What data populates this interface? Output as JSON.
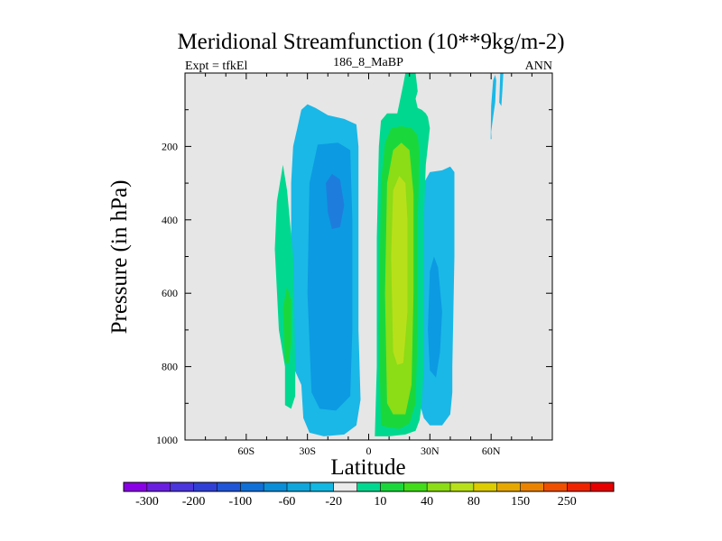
{
  "chart_data": {
    "type": "contour",
    "title": "Meridional Streamfunction (10**9kg/m-2)",
    "left_label": "Expt = tfkEl",
    "center_label": "186_8_MaBP",
    "right_label": "ANN",
    "xlabel": "Latitude",
    "ylabel": "Pressure (in hPa)",
    "xlim": [
      -90,
      90
    ],
    "ylim": [
      1000,
      0
    ],
    "x_ticks": [
      {
        "value": -60,
        "label": "60S"
      },
      {
        "value": -30,
        "label": "30S"
      },
      {
        "value": 0,
        "label": "0"
      },
      {
        "value": 30,
        "label": "30N"
      },
      {
        "value": 60,
        "label": "60N"
      }
    ],
    "y_ticks": [
      {
        "value": 200,
        "label": "200"
      },
      {
        "value": 400,
        "label": "400"
      },
      {
        "value": 600,
        "label": "600"
      },
      {
        "value": 800,
        "label": "800"
      },
      {
        "value": 1000,
        "label": "1000"
      }
    ],
    "background_color": "#e6e6e6",
    "colorbar": {
      "labels": [
        "-300",
        "-200",
        "-100",
        "-60",
        "-20",
        "10",
        "40",
        "80",
        "150",
        "250"
      ],
      "colors": [
        "#8a00e6",
        "#6a1fe0",
        "#4b35dc",
        "#3040d6",
        "#1f55d6",
        "#1170d8",
        "#0b8ed8",
        "#10a6dc",
        "#12b8e2",
        "#ebebeb",
        "#00d890",
        "#1ad83c",
        "#42dc1a",
        "#8cdc16",
        "#b8e01a",
        "#dccc00",
        "#e6a800",
        "#ea8400",
        "#ee5000",
        "#ee2400",
        "#e60000"
      ]
    },
    "regions": [
      {
        "level": "-20",
        "color": "#1ab8e6",
        "points": [
          [
            -33,
            850
          ],
          [
            -37,
            800
          ],
          [
            -38,
            600
          ],
          [
            -38,
            300
          ],
          [
            -37,
            200
          ],
          [
            -35,
            150
          ],
          [
            -33,
            100
          ],
          [
            -30,
            85
          ],
          [
            -26,
            95
          ],
          [
            -20,
            115
          ],
          [
            -12,
            125
          ],
          [
            -6,
            140
          ],
          [
            -5,
            200
          ],
          [
            -5,
            400
          ],
          [
            -5,
            700
          ],
          [
            -4,
            890
          ],
          [
            -6,
            960
          ],
          [
            -12,
            985
          ],
          [
            -22,
            990
          ],
          [
            -29,
            980
          ],
          [
            -32,
            940
          ]
        ]
      },
      {
        "level": "-60",
        "color": "#0c9ae3",
        "points": [
          [
            -28,
            870
          ],
          [
            -30,
            600
          ],
          [
            -29,
            300
          ],
          [
            -25,
            195
          ],
          [
            -15,
            190
          ],
          [
            -9,
            210
          ],
          [
            -8,
            400
          ],
          [
            -8,
            700
          ],
          [
            -9,
            880
          ],
          [
            -16,
            920
          ],
          [
            -24,
            915
          ]
        ]
      },
      {
        "level": "-100",
        "color": "#1e7ddc",
        "points": [
          [
            -20,
            380
          ],
          [
            -21,
            300
          ],
          [
            -18,
            275
          ],
          [
            -14,
            290
          ],
          [
            -12,
            360
          ],
          [
            -14,
            420
          ],
          [
            -18,
            425
          ]
        ]
      },
      {
        "level": "-20",
        "color": "#1ab8e6",
        "points": [
          [
            25,
            900
          ],
          [
            24,
            600
          ],
          [
            25,
            400
          ],
          [
            27,
            300
          ],
          [
            30,
            270
          ],
          [
            36,
            265
          ],
          [
            40,
            255
          ],
          [
            42,
            270
          ],
          [
            42,
            500
          ],
          [
            41,
            800
          ],
          [
            41,
            870
          ],
          [
            40,
            930
          ],
          [
            36,
            960
          ],
          [
            30,
            960
          ],
          [
            27,
            940
          ]
        ]
      },
      {
        "level": "-60",
        "color": "#0c9ae3",
        "points": [
          [
            29,
            700
          ],
          [
            30,
            540
          ],
          [
            32,
            500
          ],
          [
            34,
            530
          ],
          [
            36,
            650
          ],
          [
            35,
            760
          ],
          [
            33,
            830
          ],
          [
            30,
            810
          ]
        ]
      },
      {
        "level": "10",
        "color": "#00d890",
        "points": [
          [
            -41,
            800
          ],
          [
            -44,
            700
          ],
          [
            -46,
            480
          ],
          [
            -45,
            350
          ],
          [
            -42,
            250
          ],
          [
            -40,
            320
          ],
          [
            -37,
            500
          ],
          [
            -36,
            800
          ],
          [
            -36,
            880
          ],
          [
            -38,
            915
          ],
          [
            -41,
            905
          ]
        ]
      },
      {
        "level": "40",
        "color": "#1ad83c",
        "points": [
          [
            -41,
            790
          ],
          [
            -42,
            640
          ],
          [
            -40,
            580
          ],
          [
            -38,
            620
          ],
          [
            -38,
            730
          ],
          [
            -39,
            790
          ]
        ]
      },
      {
        "level": "10",
        "color": "#00d890",
        "points": [
          [
            3,
            990
          ],
          [
            4,
            800
          ],
          [
            4,
            450
          ],
          [
            5,
            200
          ],
          [
            6,
            130
          ],
          [
            9,
            110
          ],
          [
            14,
            110
          ],
          [
            17,
            30
          ],
          [
            18,
            0
          ],
          [
            23,
            0
          ],
          [
            24,
            50
          ],
          [
            23,
            70
          ],
          [
            24,
            95
          ],
          [
            26,
            100
          ],
          [
            28,
            110
          ],
          [
            29,
            120
          ],
          [
            30,
            150
          ],
          [
            28,
            250
          ],
          [
            27,
            400
          ],
          [
            27,
            600
          ],
          [
            27,
            800
          ],
          [
            26,
            900
          ],
          [
            25,
            945
          ],
          [
            23,
            975
          ],
          [
            18,
            985
          ],
          [
            10,
            990
          ]
        ]
      },
      {
        "level": "40",
        "color": "#1ad83c",
        "points": [
          [
            6,
            960
          ],
          [
            5,
            700
          ],
          [
            6,
            300
          ],
          [
            8,
            190
          ],
          [
            11,
            150
          ],
          [
            16,
            145
          ],
          [
            21,
            150
          ],
          [
            24,
            170
          ],
          [
            25,
            220
          ],
          [
            24,
            400
          ],
          [
            24,
            700
          ],
          [
            23,
            900
          ],
          [
            20,
            955
          ],
          [
            15,
            970
          ],
          [
            9,
            965
          ]
        ]
      },
      {
        "level": "80",
        "color": "#8cdc16",
        "points": [
          [
            9,
            900
          ],
          [
            8,
            600
          ],
          [
            9,
            300
          ],
          [
            12,
            210
          ],
          [
            16,
            190
          ],
          [
            20,
            210
          ],
          [
            22,
            330
          ],
          [
            22,
            600
          ],
          [
            21,
            850
          ],
          [
            18,
            930
          ],
          [
            12,
            930
          ]
        ]
      },
      {
        "level": "80",
        "color": "#b8e01a",
        "points": [
          [
            12,
            760
          ],
          [
            11,
            500
          ],
          [
            12,
            320
          ],
          [
            15,
            280
          ],
          [
            18,
            300
          ],
          [
            19,
            400
          ],
          [
            19,
            650
          ],
          [
            17,
            790
          ],
          [
            14,
            795
          ]
        ]
      },
      {
        "level": "10",
        "color": "#00d890",
        "points": [
          [
            18,
            30
          ],
          [
            19,
            5
          ],
          [
            21,
            5
          ],
          [
            22,
            30
          ],
          [
            21,
            60
          ],
          [
            19,
            60
          ]
        ]
      },
      {
        "level": "-20",
        "color": "#1ab8e6",
        "points": [
          [
            60,
            90
          ],
          [
            61,
            20
          ],
          [
            62,
            5
          ],
          [
            62.5,
            20
          ],
          [
            62,
            80
          ],
          [
            61,
            120
          ],
          [
            60,
            160
          ],
          [
            60.2,
            180
          ],
          [
            59.8,
            180
          ]
        ]
      },
      {
        "level": "-20",
        "color": "#1ab8e6",
        "points": [
          [
            64,
            80
          ],
          [
            64.5,
            0
          ],
          [
            66,
            0
          ],
          [
            65.5,
            50
          ],
          [
            65,
            90
          ]
        ]
      }
    ]
  }
}
